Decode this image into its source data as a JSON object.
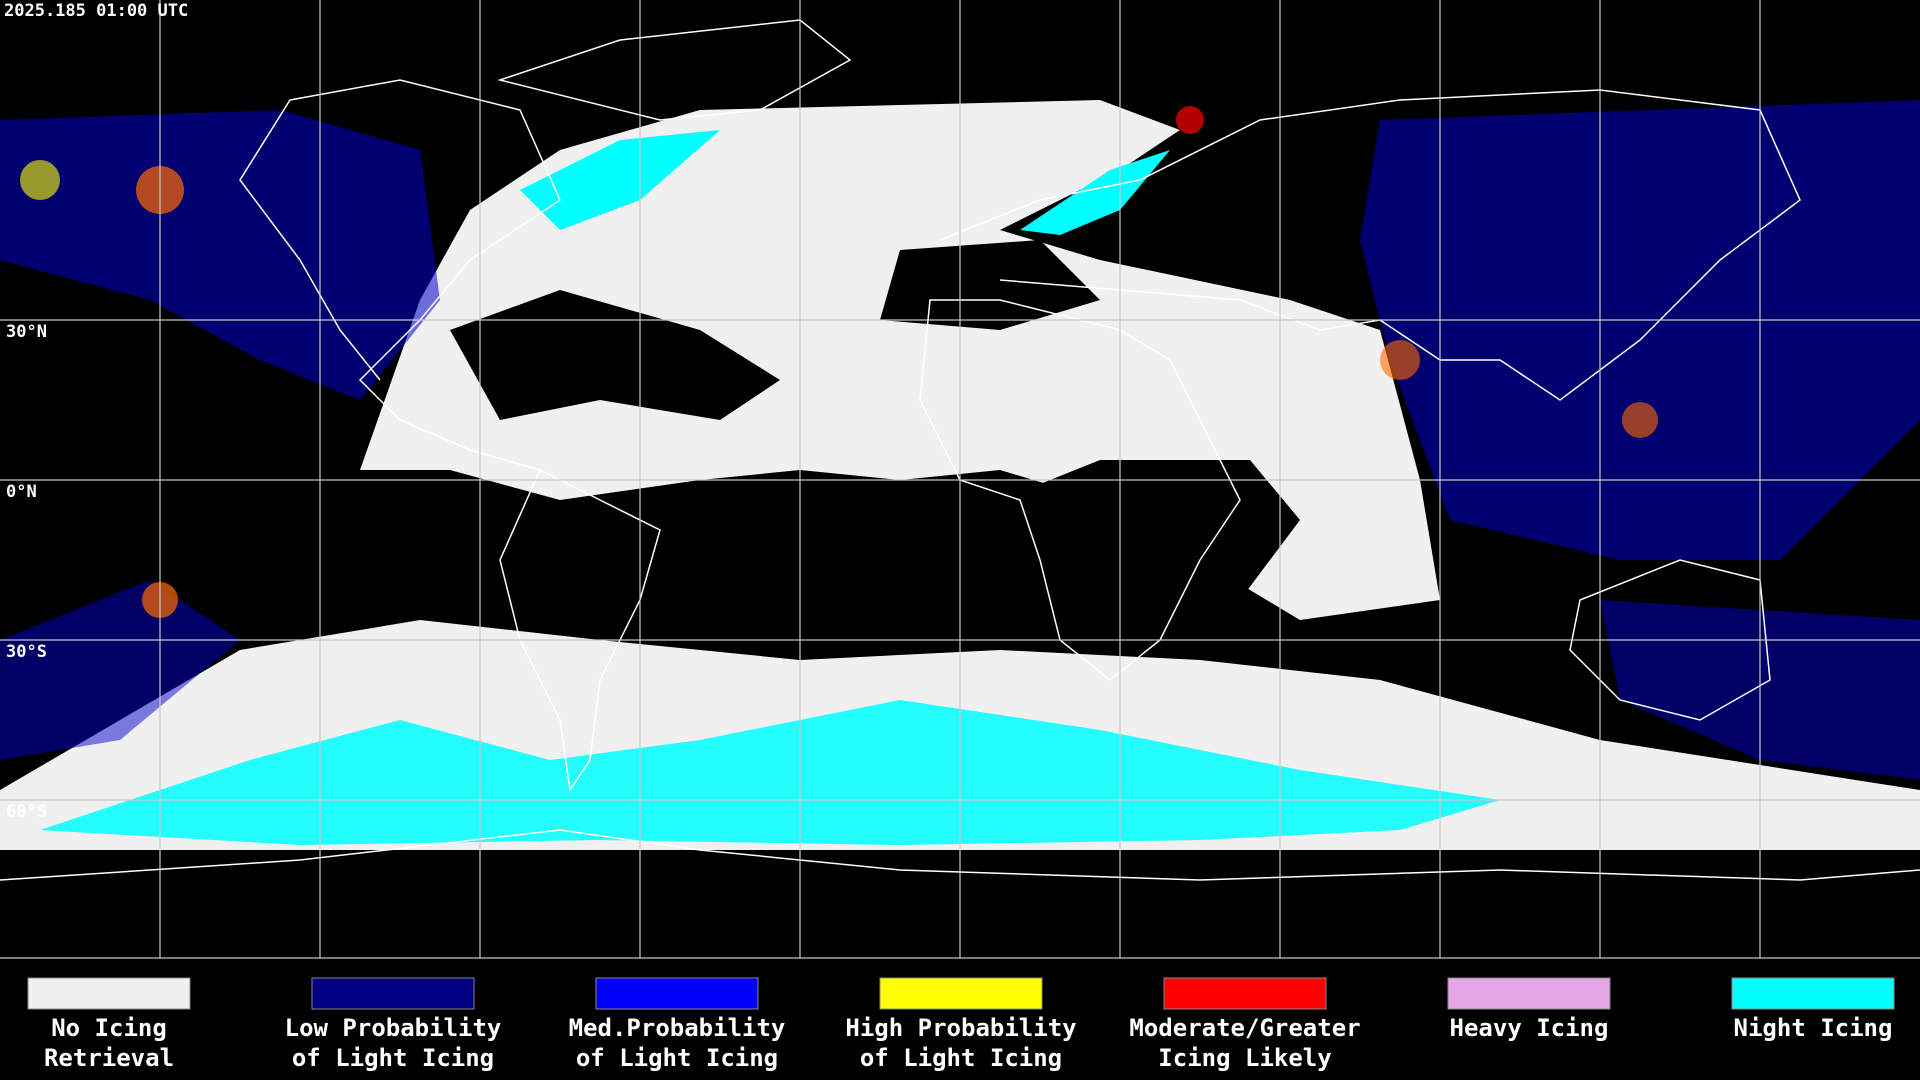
{
  "header": {
    "timestamp": "2025.185 01:00 UTC"
  },
  "map": {
    "latitude_labels": [
      "30°N",
      "0°N",
      "30°S",
      "60°S"
    ]
  },
  "legend": {
    "items": [
      {
        "lines": [
          "No Icing",
          "Retrieval"
        ],
        "color": "#f0f0f0"
      },
      {
        "lines": [
          "Low Probability",
          "of Light Icing"
        ],
        "color": "#000080"
      },
      {
        "lines": [
          "Med.Probability",
          "of Light Icing"
        ],
        "color": "#0000ff"
      },
      {
        "lines": [
          "High Probability",
          "of Light Icing"
        ],
        "color": "#ffff00"
      },
      {
        "lines": [
          "Moderate/Greater",
          "Icing Likely"
        ],
        "color": "#ff0000"
      },
      {
        "lines": [
          "Heavy Icing"
        ],
        "color": "#e6a6e6"
      },
      {
        "lines": [
          "Night Icing"
        ],
        "color": "#00ffff"
      }
    ]
  }
}
